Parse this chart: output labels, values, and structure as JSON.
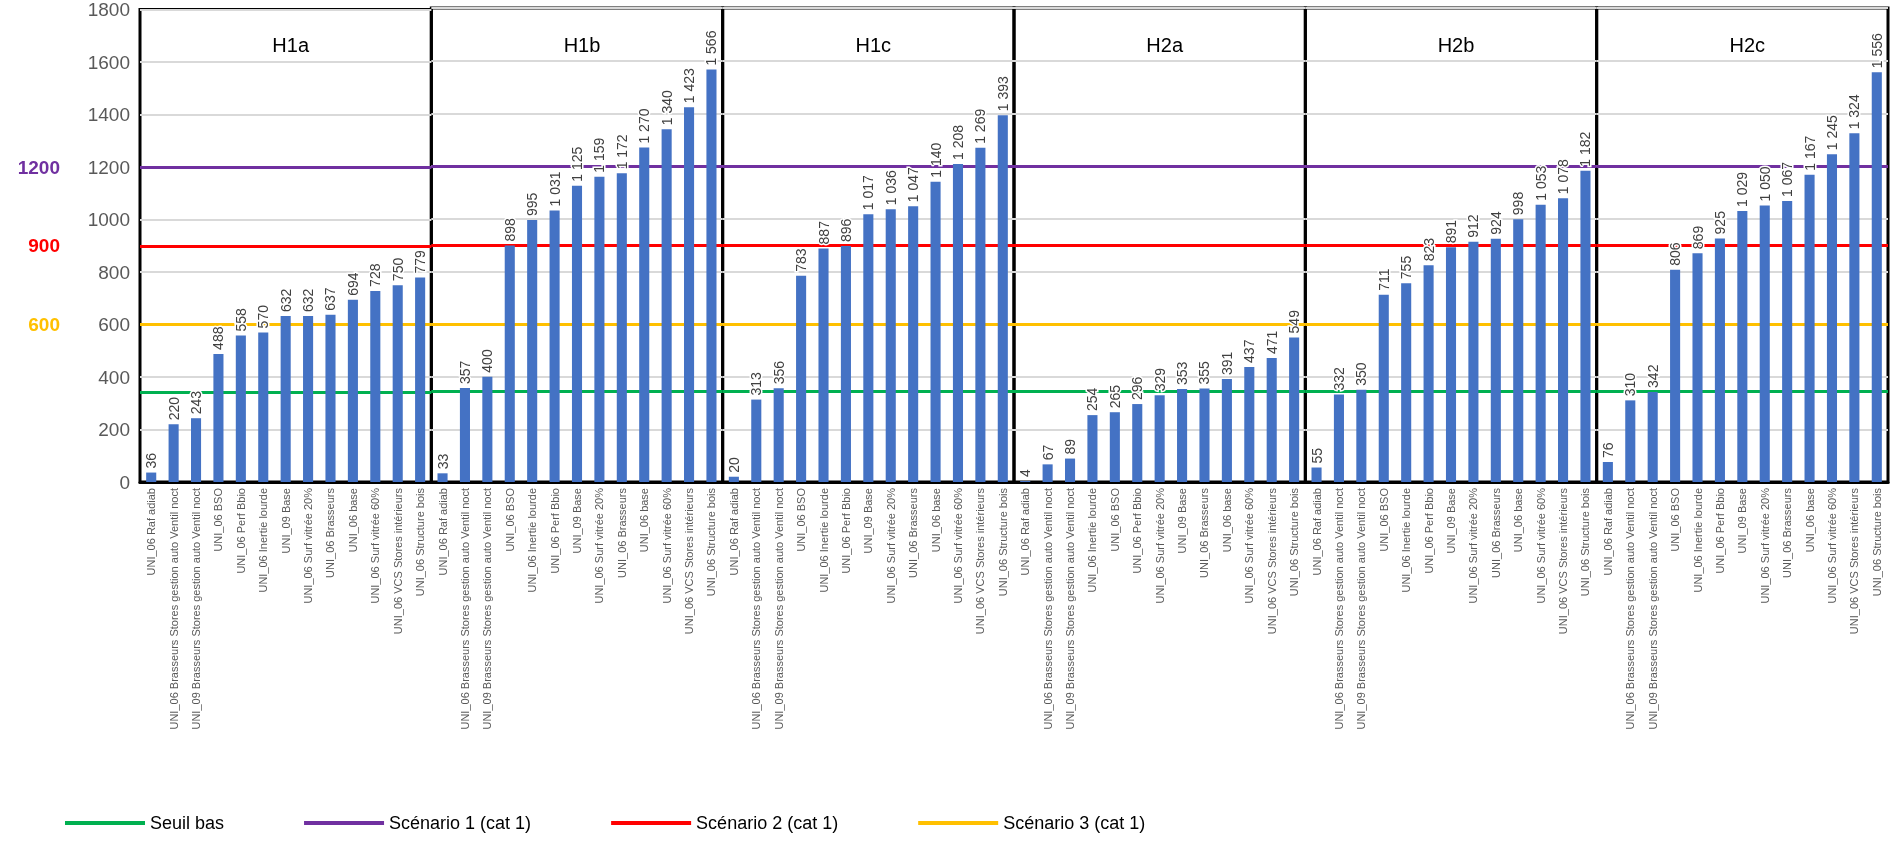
{
  "chart_data": [
    {
      "type": "bar",
      "title": "H1a",
      "categories": [
        "UNI_06 Raf adiab",
        "UNI_06 Brasseurs Stores gestion auto Ventil noct",
        "UNI_09 Brasseurs Stores gestion auto Ventil noct",
        "UNI_06 BSO",
        "UNI_06 Perf Bbio",
        "UNI_06 Inertie lourde",
        "UNI_09 Base",
        "UNI_06 Surf vitrée 20%",
        "UNI_06 Brasseurs",
        "UNI_06 base",
        "UNI_06 Surf vitrée 60%",
        "UNI_06 VCS Stores intérieurs",
        "UNI_06 Structure bois"
      ],
      "values": [
        36,
        220,
        243,
        488,
        558,
        570,
        632,
        632,
        637,
        694,
        728,
        750,
        779
      ],
      "value_labels": [
        "36",
        "220",
        "243",
        "488",
        "558",
        "570",
        "632",
        "632",
        "637",
        "694",
        "728",
        "750",
        "779"
      ],
      "color": "#4472c4",
      "ylim": [
        0,
        1800
      ],
      "yticks": [
        0,
        200,
        400,
        600,
        800,
        1000,
        1200,
        1400,
        1600,
        1800
      ],
      "grid": "y",
      "legend": "bottom",
      "ref_lines": [
        {
          "axis": "y",
          "value": 343,
          "label": "Seuil bas",
          "color": "#00b050"
        },
        {
          "axis": "y",
          "value": 1200,
          "label": "Scénario 1 (cat 1)",
          "color": "#7030a0"
        },
        {
          "axis": "y",
          "value": 900,
          "label": "Scénario 2 (cat 1)",
          "color": "#ff0000"
        },
        {
          "axis": "y",
          "value": 600,
          "label": "Scénario 3 (cat 1)",
          "color": "#ffc000"
        }
      ],
      "annotations": [
        "1200",
        "900",
        "600"
      ]
    },
    {
      "type": "bar",
      "title": "H1b",
      "categories": [
        "UNI_06 Raf adiab",
        "UNI_06 Brasseurs Stores gestion auto Ventil noct",
        "UNI_09 Brasseurs Stores gestion auto Ventil noct",
        "UNI_06 BSO",
        "UNI_06 Inertie lourde",
        "UNI_06 Perf Bbio",
        "UNI_09 Base",
        "UNI_06 Surf vitrée 20%",
        "UNI_06 Brasseurs",
        "UNI_06 base",
        "UNI_06 Surf vitrée 60%",
        "UNI_06 VCS Stores intérieurs",
        "UNI_06 Structure bois"
      ],
      "values": [
        33,
        357,
        400,
        898,
        995,
        1031,
        1125,
        1159,
        1172,
        1270,
        1340,
        1423,
        1566
      ],
      "value_labels": [
        "33",
        "357",
        "400",
        "898",
        "995",
        "1 031",
        "1 125",
        "1 159",
        "1 172",
        "1 270",
        "1 340",
        "1 423",
        "1 566"
      ],
      "color": "#4472c4",
      "ylim": [
        0,
        1800
      ],
      "yticks": [
        0,
        200,
        400,
        600,
        800,
        1000,
        1200,
        1400,
        1600,
        1800
      ],
      "grid": "y",
      "tick_labels": "x",
      "ref_lines": [
        {
          "axis": "y",
          "value": 343,
          "color": "#00b050"
        },
        {
          "axis": "y",
          "value": 1200,
          "color": "#7030a0"
        },
        {
          "axis": "y",
          "value": 900,
          "color": "#ff0000"
        },
        {
          "axis": "y",
          "value": 600,
          "color": "#ffc000"
        }
      ]
    },
    {
      "type": "bar",
      "title": "H1c",
      "categories": [
        "UNI_06 Raf adiab",
        "UNI_06 Brasseurs Stores gestion auto Ventil noct",
        "UNI_09 Brasseurs Stores gestion auto Ventil noct",
        "UNI_06 BSO",
        "UNI_06 Inertie lourde",
        "UNI_06 Perf Bbio",
        "UNI_09 Base",
        "UNI_06 Surf vitrée 20%",
        "UNI_06 Brasseurs",
        "UNI_06 base",
        "UNI_06 Surf vitrée 60%",
        "UNI_06 VCS Stores intérieurs",
        "UNI_06 Structure bois"
      ],
      "values": [
        20,
        313,
        356,
        783,
        887,
        896,
        1017,
        1036,
        1047,
        1140,
        1208,
        1269,
        1393
      ],
      "value_labels": [
        "20",
        "313",
        "356",
        "783",
        "887",
        "896",
        "1 017",
        "1 036",
        "1 047",
        "1 140",
        "1 208",
        "1 269",
        "1 393"
      ],
      "color": "#4472c4",
      "ylim": [
        0,
        1800
      ],
      "yticks": [
        0,
        200,
        400,
        600,
        800,
        1000,
        1200,
        1400,
        1600,
        1800
      ],
      "grid": "y",
      "tick_labels": "x",
      "ref_lines": [
        {
          "axis": "y",
          "value": 343,
          "color": "#00b050"
        },
        {
          "axis": "y",
          "value": 1200,
          "color": "#7030a0"
        },
        {
          "axis": "y",
          "value": 900,
          "color": "#ff0000"
        },
        {
          "axis": "y",
          "value": 600,
          "color": "#ffc000"
        }
      ]
    },
    {
      "type": "bar",
      "title": "H2a",
      "categories": [
        "UNI_06 Raf adiab",
        "UNI_06 Brasseurs Stores gestion auto Ventil noct",
        "UNI_09 Brasseurs Stores gestion auto Ventil noct",
        "UNI_06 Inertie lourde",
        "UNI_06 BSO",
        "UNI_06 Perf Bbio",
        "UNI_06 Surf vitrée 20%",
        "UNI_09 Base",
        "UNI_06 Brasseurs",
        "UNI_06 base",
        "UNI_06 Surf vitrée 60%",
        "UNI_06 VCS Stores intérieurs",
        "UNI_06 Structure bois"
      ],
      "values": [
        4,
        67,
        89,
        254,
        265,
        296,
        329,
        353,
        355,
        391,
        437,
        471,
        549
      ],
      "value_labels": [
        "4",
        "67",
        "89",
        "254",
        "265",
        "296",
        "329",
        "353",
        "355",
        "391",
        "437",
        "471",
        "549"
      ],
      "color": "#4472c4",
      "ylim": [
        0,
        1800
      ],
      "yticks": [
        0,
        200,
        400,
        600,
        800,
        1000,
        1200,
        1400,
        1600,
        1800
      ],
      "grid": "y",
      "tick_labels": "x",
      "ref_lines": [
        {
          "axis": "y",
          "value": 343,
          "color": "#00b050"
        },
        {
          "axis": "y",
          "value": 1200,
          "color": "#7030a0"
        },
        {
          "axis": "y",
          "value": 900,
          "color": "#ff0000"
        },
        {
          "axis": "y",
          "value": 600,
          "color": "#ffc000"
        }
      ]
    },
    {
      "type": "bar",
      "title": "H2b",
      "categories": [
        "UNI_06 Raf adiab",
        "UNI_06 Brasseurs Stores gestion auto Ventil noct",
        "UNI_09 Brasseurs Stores gestion auto Ventil noct",
        "UNI_06 BSO",
        "UNI_06 Inertie lourde",
        "UNI_06 Perf Bbio",
        "UNI_09 Base",
        "UNI_06 Surf vitrée 20%",
        "UNI_06 Brasseurs",
        "UNI_06 base",
        "UNI_06 Surf vitrée 60%",
        "UNI_06 VCS Stores intérieurs",
        "UNI_06 Structure bois"
      ],
      "values": [
        55,
        332,
        350,
        711,
        755,
        823,
        891,
        912,
        924,
        998,
        1053,
        1078,
        1182
      ],
      "value_labels": [
        "55",
        "332",
        "350",
        "711",
        "755",
        "823",
        "891",
        "912",
        "924",
        "998",
        "1 053",
        "1 078",
        "1 182"
      ],
      "color": "#4472c4",
      "ylim": [
        0,
        1800
      ],
      "yticks": [
        0,
        200,
        400,
        600,
        800,
        1000,
        1200,
        1400,
        1600,
        1800
      ],
      "grid": "y",
      "tick_labels": "x",
      "ref_lines": [
        {
          "axis": "y",
          "value": 343,
          "color": "#00b050"
        },
        {
          "axis": "y",
          "value": 1200,
          "color": "#7030a0"
        },
        {
          "axis": "y",
          "value": 900,
          "color": "#ff0000"
        },
        {
          "axis": "y",
          "value": 600,
          "color": "#ffc000"
        }
      ]
    },
    {
      "type": "bar",
      "title": "H2c",
      "categories": [
        "UNI_06 Raf adiab",
        "UNI_06 Brasseurs Stores gestion auto Ventil noct",
        "UNI_09 Brasseurs Stores gestion auto Ventil noct",
        "UNI_06 BSO",
        "UNI_06 Inertie lourde",
        "UNI_06 Perf Bbio",
        "UNI_09 Base",
        "UNI_06 Surf vitrée 20%",
        "UNI_06 Brasseurs",
        "UNI_06 base",
        "UNI_06 Surf vitrée 60%",
        "UNI_06 VCS Stores intérieurs",
        "UNI_06 Structure bois"
      ],
      "values": [
        76,
        310,
        342,
        806,
        869,
        925,
        1029,
        1050,
        1067,
        1167,
        1245,
        1324,
        1556
      ],
      "value_labels": [
        "76",
        "310",
        "342",
        "806",
        "869",
        "925",
        "1 029",
        "1 050",
        "1 067",
        "1 167",
        "1 245",
        "1 324",
        "1 556"
      ],
      "color": "#4472c4",
      "ylim": [
        0,
        1800
      ],
      "yticks": [
        0,
        200,
        400,
        600,
        800,
        1000,
        1200,
        1400,
        1600,
        1800
      ],
      "grid": "y",
      "tick_labels": "x",
      "ref_lines": [
        {
          "axis": "y",
          "value": 343,
          "color": "#00b050"
        },
        {
          "axis": "y",
          "value": 1200,
          "color": "#7030a0"
        },
        {
          "axis": "y",
          "value": 900,
          "color": "#ff0000"
        },
        {
          "axis": "y",
          "value": 600,
          "color": "#ffc000"
        }
      ]
    }
  ]
}
